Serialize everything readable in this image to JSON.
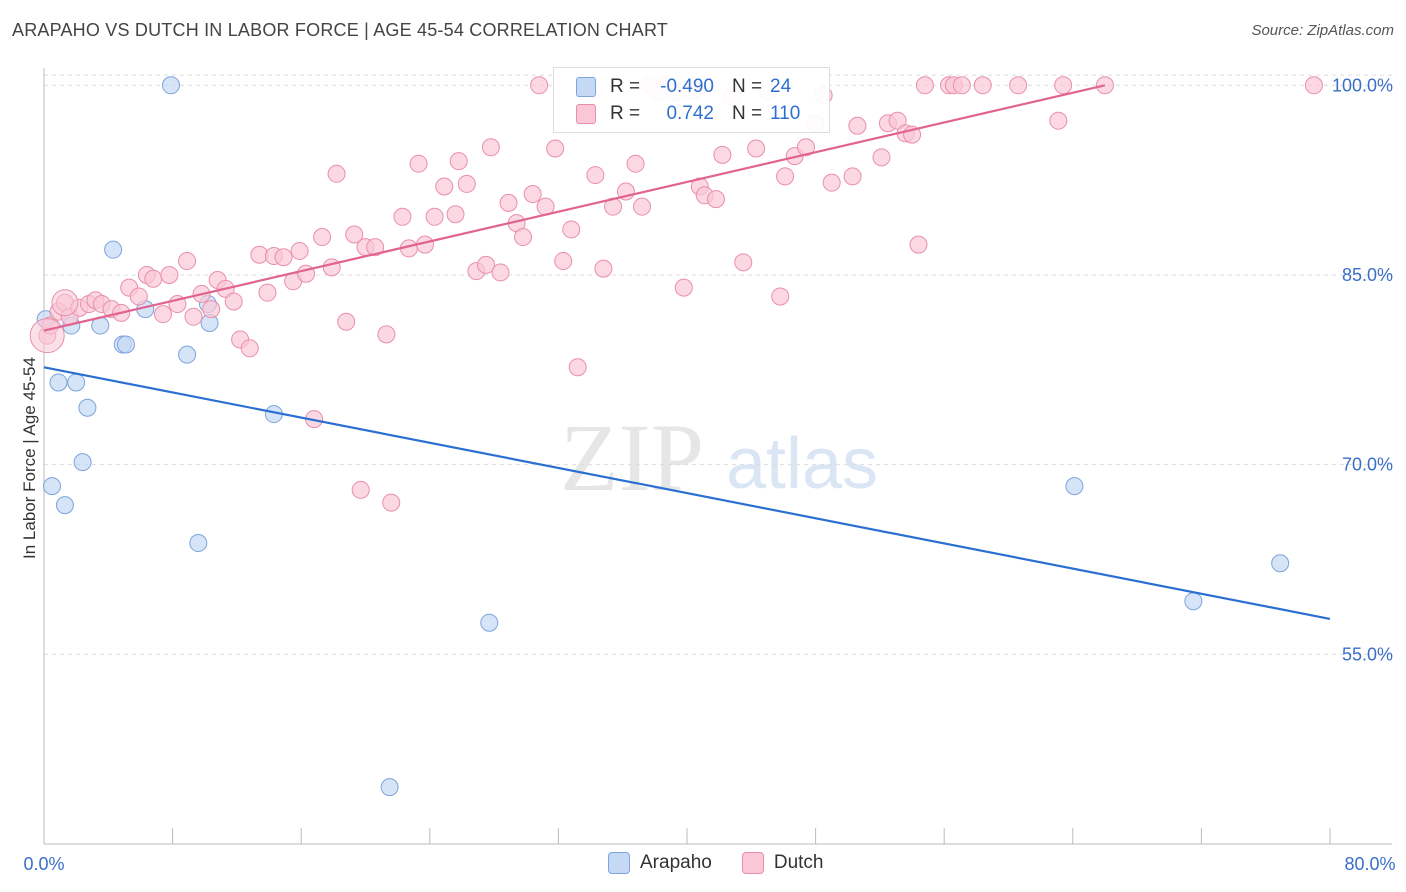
{
  "header": {
    "title": "ARAPAHO VS DUTCH IN LABOR FORCE | AGE 45-54 CORRELATION CHART",
    "source": "Source: ZipAtlas.com"
  },
  "watermark": {
    "zip": "ZIP",
    "atlas": "atlas"
  },
  "colors": {
    "arapaho_fill": "#c5d9f5",
    "arapaho_stroke": "#7da4dc",
    "arapaho_line": "#2b6fd1",
    "dutch_fill": "#f9c7d6",
    "dutch_stroke": "#e98fab",
    "dutch_line": "#e0648f",
    "tick_label": "#3a6fc7",
    "grid": "#dcdcdc"
  },
  "legend": {
    "rows": [
      {
        "r_label": "R =",
        "r_value": "-0.490",
        "n_label": "N =",
        "n_value": "24"
      },
      {
        "r_label": "R =",
        "r_value": "0.742",
        "n_label": "N =",
        "n_value": "110"
      }
    ]
  },
  "chart_data": {
    "type": "scatter",
    "title": "ARAPAHO VS DUTCH IN LABOR FORCE | AGE 45-54 CORRELATION CHART",
    "xlabel": "",
    "ylabel": "In Labor Force | Age 45-54",
    "xlim": [
      0,
      80
    ],
    "ylim": [
      40,
      102
    ],
    "x_tick_labels": [
      "0.0%",
      "80.0%"
    ],
    "y_ticks": [
      55,
      70,
      85,
      100
    ],
    "y_tick_labels": [
      "55.0%",
      "70.0%",
      "85.0%",
      "100.0%"
    ],
    "grid": true,
    "legend_position": "bottom",
    "series": [
      {
        "name": "Arapaho",
        "points": [
          [
            0.1,
            81.5
          ],
          [
            0.5,
            68.3
          ],
          [
            0.9,
            76.5
          ],
          [
            1.3,
            66.8
          ],
          [
            1.7,
            81.0
          ],
          [
            2.0,
            76.5
          ],
          [
            2.4,
            70.2
          ],
          [
            2.7,
            74.5
          ],
          [
            3.5,
            81.0
          ],
          [
            4.3,
            87.0
          ],
          [
            4.9,
            79.5
          ],
          [
            5.1,
            79.5
          ],
          [
            6.3,
            82.3
          ],
          [
            7.9,
            100.0
          ],
          [
            8.9,
            78.7
          ],
          [
            9.6,
            63.8
          ],
          [
            10.2,
            82.7
          ],
          [
            10.3,
            81.2
          ],
          [
            14.3,
            74.0
          ],
          [
            21.5,
            44.5
          ],
          [
            27.7,
            57.5
          ],
          [
            64.1,
            68.3
          ],
          [
            71.5,
            59.2
          ],
          [
            76.9,
            62.2
          ]
        ],
        "trend": {
          "x": [
            0,
            80
          ],
          "y": [
            77.7,
            57.8
          ]
        }
      },
      {
        "name": "Dutch",
        "points": [
          [
            0.2,
            80.2
          ],
          [
            0.4,
            81.0
          ],
          [
            0.9,
            82.1
          ],
          [
            1.3,
            82.8
          ],
          [
            1.6,
            81.7
          ],
          [
            2.2,
            82.4
          ],
          [
            2.8,
            82.7
          ],
          [
            3.2,
            83.0
          ],
          [
            3.6,
            82.7
          ],
          [
            4.2,
            82.3
          ],
          [
            4.8,
            82.0
          ],
          [
            5.3,
            84.0
          ],
          [
            5.9,
            83.3
          ],
          [
            6.4,
            85.0
          ],
          [
            6.8,
            84.7
          ],
          [
            7.4,
            81.9
          ],
          [
            7.8,
            85.0
          ],
          [
            8.3,
            82.7
          ],
          [
            8.9,
            86.1
          ],
          [
            9.3,
            81.7
          ],
          [
            9.8,
            83.5
          ],
          [
            10.4,
            82.3
          ],
          [
            10.8,
            84.6
          ],
          [
            11.3,
            83.9
          ],
          [
            11.8,
            82.9
          ],
          [
            12.2,
            79.9
          ],
          [
            12.8,
            79.2
          ],
          [
            13.4,
            86.6
          ],
          [
            13.9,
            83.6
          ],
          [
            14.3,
            86.5
          ],
          [
            14.9,
            86.4
          ],
          [
            15.5,
            84.5
          ],
          [
            15.9,
            86.9
          ],
          [
            16.3,
            85.1
          ],
          [
            16.8,
            73.6
          ],
          [
            17.3,
            88.0
          ],
          [
            17.9,
            85.6
          ],
          [
            18.2,
            93.0
          ],
          [
            18.8,
            81.3
          ],
          [
            19.3,
            88.2
          ],
          [
            19.7,
            68.0
          ],
          [
            20.0,
            87.2
          ],
          [
            20.6,
            87.2
          ],
          [
            21.3,
            80.3
          ],
          [
            21.6,
            67.0
          ],
          [
            22.3,
            89.6
          ],
          [
            22.7,
            87.1
          ],
          [
            23.3,
            93.8
          ],
          [
            23.7,
            87.4
          ],
          [
            24.3,
            89.6
          ],
          [
            24.9,
            92.0
          ],
          [
            25.6,
            89.8
          ],
          [
            25.8,
            94.0
          ],
          [
            26.3,
            92.2
          ],
          [
            26.9,
            85.3
          ],
          [
            27.5,
            85.8
          ],
          [
            27.8,
            95.1
          ],
          [
            28.4,
            85.2
          ],
          [
            28.9,
            90.7
          ],
          [
            29.4,
            89.1
          ],
          [
            29.8,
            88.0
          ],
          [
            30.4,
            91.4
          ],
          [
            30.8,
            100.0
          ],
          [
            31.2,
            90.4
          ],
          [
            31.8,
            95.0
          ],
          [
            32.3,
            86.1
          ],
          [
            32.8,
            88.6
          ],
          [
            33.2,
            77.7
          ],
          [
            34.3,
            92.9
          ],
          [
            34.8,
            85.5
          ],
          [
            35.4,
            90.4
          ],
          [
            36.2,
            91.6
          ],
          [
            36.8,
            93.8
          ],
          [
            37.2,
            90.4
          ],
          [
            37.7,
            100.0
          ],
          [
            38.2,
            99.5
          ],
          [
            38.8,
            100.0
          ],
          [
            39.3,
            99.5
          ],
          [
            39.8,
            84.0
          ],
          [
            40.4,
            99.6
          ],
          [
            40.8,
            92.0
          ],
          [
            41.1,
            91.3
          ],
          [
            41.8,
            91.0
          ],
          [
            42.2,
            94.5
          ],
          [
            42.8,
            99.1
          ],
          [
            43.5,
            86.0
          ],
          [
            44.3,
            95.0
          ],
          [
            45.0,
            99.5
          ],
          [
            45.8,
            83.3
          ],
          [
            46.1,
            92.8
          ],
          [
            46.7,
            94.4
          ],
          [
            47.4,
            95.1
          ],
          [
            48.0,
            97.0
          ],
          [
            48.5,
            99.2
          ],
          [
            49.0,
            92.3
          ],
          [
            50.3,
            92.8
          ],
          [
            50.6,
            96.8
          ],
          [
            52.1,
            94.3
          ],
          [
            52.5,
            97.0
          ],
          [
            53.1,
            97.2
          ],
          [
            53.6,
            96.2
          ],
          [
            54.0,
            96.1
          ],
          [
            54.4,
            87.4
          ],
          [
            54.8,
            100.0
          ],
          [
            56.3,
            100.0
          ],
          [
            56.6,
            100.0
          ],
          [
            57.1,
            100.0
          ],
          [
            58.4,
            100.0
          ],
          [
            60.6,
            100.0
          ],
          [
            63.1,
            97.2
          ],
          [
            63.4,
            100.0
          ],
          [
            66.0,
            100.0
          ],
          [
            79.0,
            100.0
          ]
        ],
        "trend": {
          "x": [
            0,
            66.0
          ],
          "y": [
            80.6,
            100.0
          ]
        }
      }
    ]
  }
}
